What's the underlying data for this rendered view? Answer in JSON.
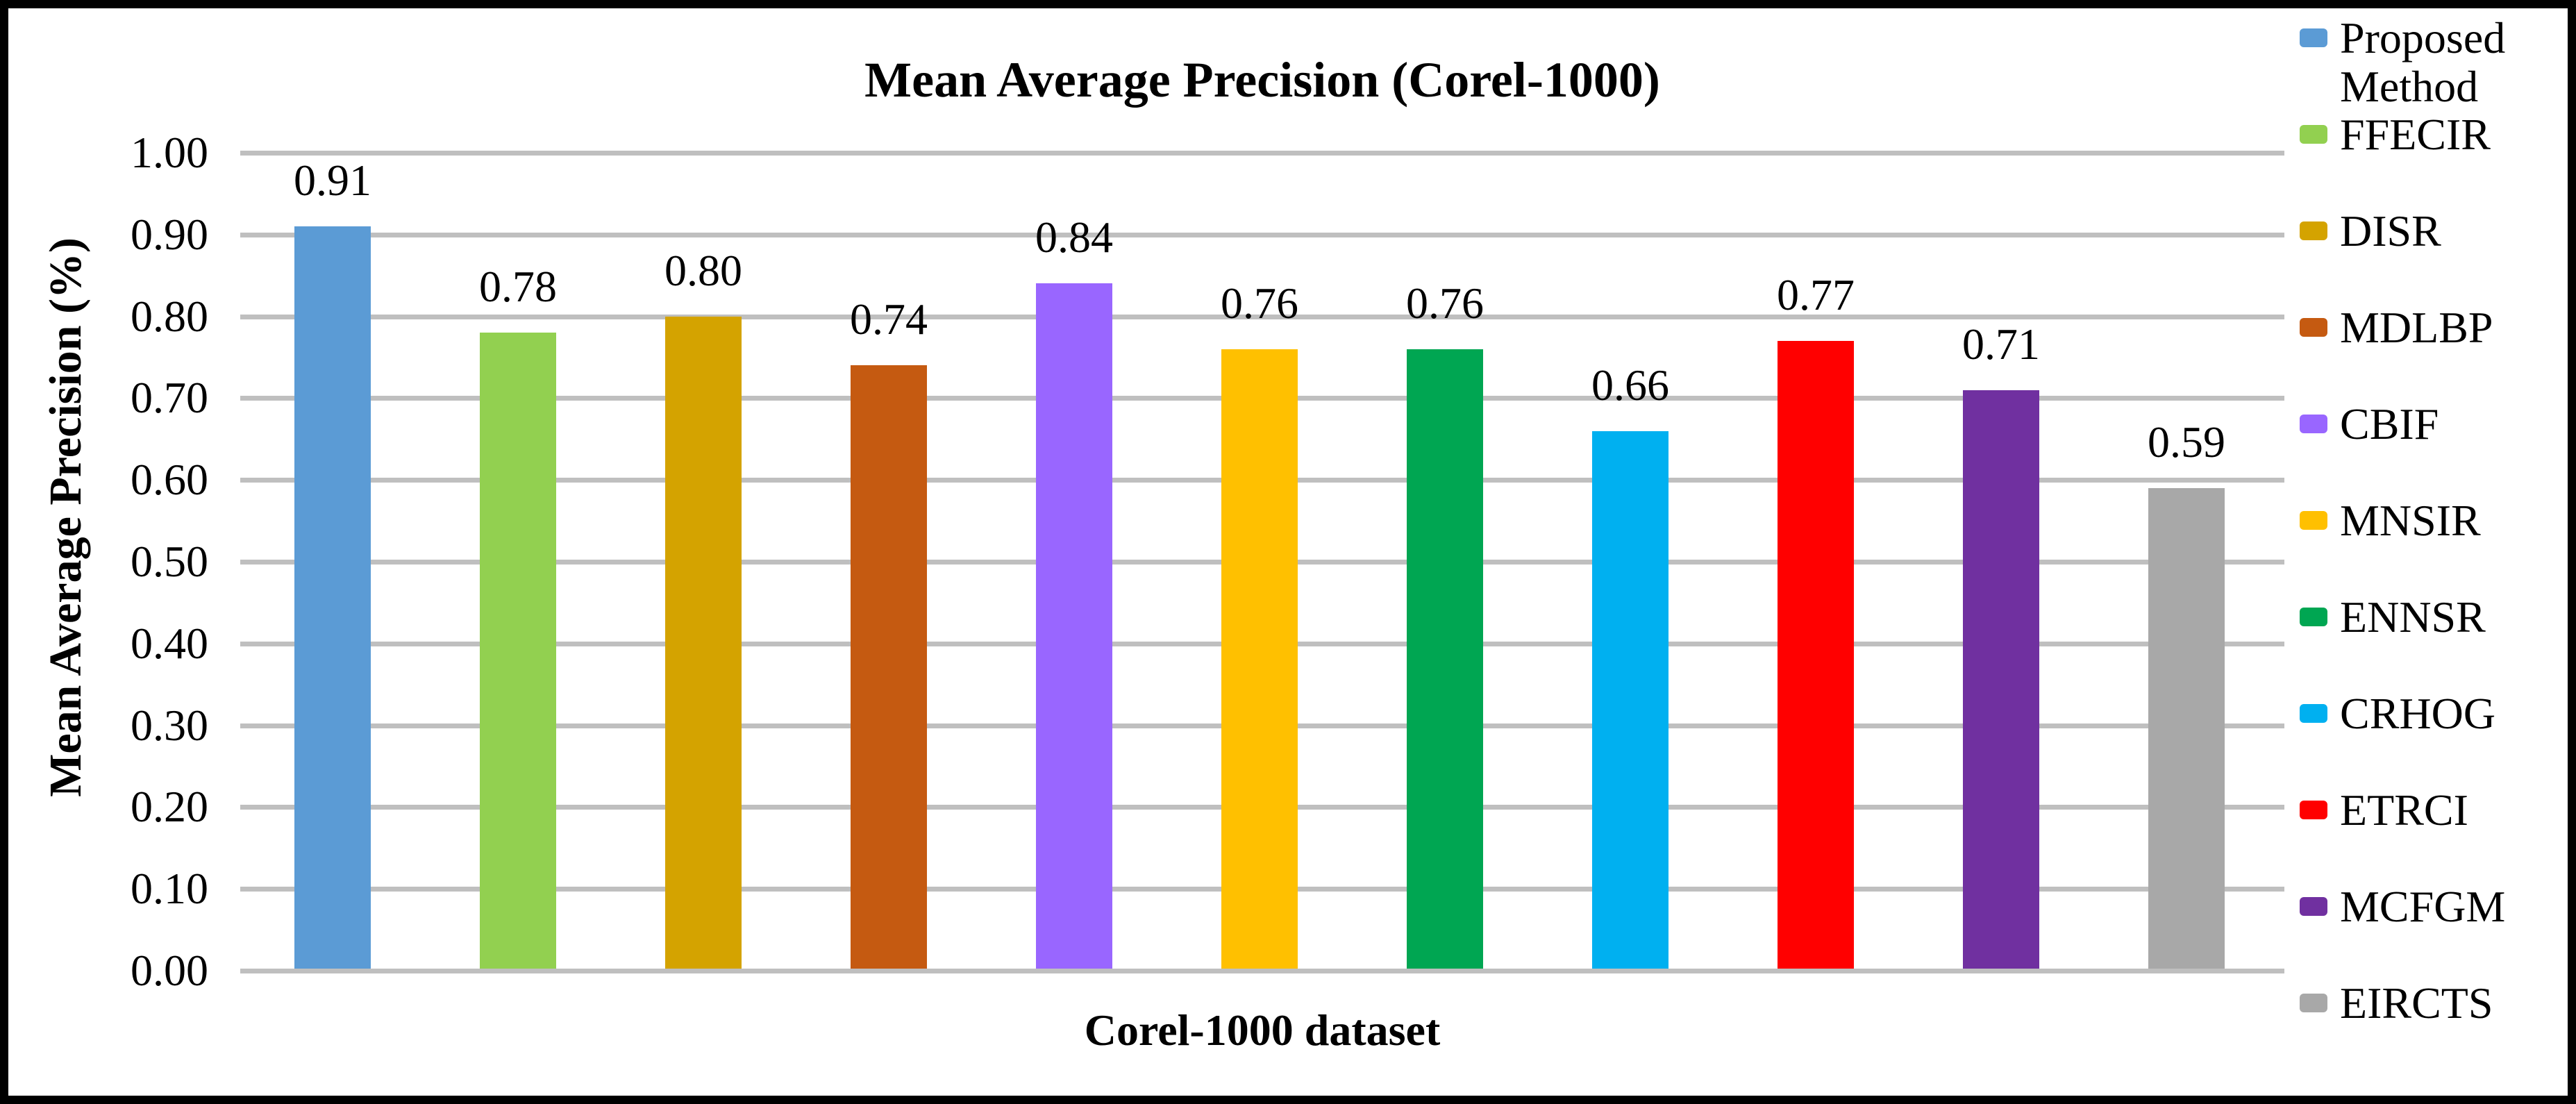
{
  "chart_data": {
    "type": "bar",
    "title": "Mean Average Precision (Corel-1000)",
    "xlabel": "Corel-1000 dataset",
    "ylabel": "Mean Average Precision (%)",
    "ylim": [
      0.0,
      1.0
    ],
    "ytick_step": 0.1,
    "yticks": [
      "0.00",
      "0.10",
      "0.20",
      "0.30",
      "0.40",
      "0.50",
      "0.60",
      "0.70",
      "0.80",
      "0.90",
      "1.00"
    ],
    "grid": true,
    "grid_color": "#BFBFBF",
    "legend_position": "right",
    "categories": [
      "Proposed Method",
      "FFECIR",
      "DISR",
      "MDLBP",
      "CBIF",
      "MNSIR",
      "ENNSR",
      "CRHOG",
      "ETRCI",
      "MCFGM",
      "EIRCTS"
    ],
    "series": [
      {
        "name": "Proposed Method",
        "value": 0.91,
        "label": "0.91",
        "color": "#5B9BD5"
      },
      {
        "name": "FFECIR",
        "value": 0.78,
        "label": "0.78",
        "color": "#92D050"
      },
      {
        "name": "DISR",
        "value": 0.8,
        "label": "0.80",
        "color": "#D4A300"
      },
      {
        "name": "MDLBP",
        "value": 0.74,
        "label": "0.74",
        "color": "#C55A11"
      },
      {
        "name": "CBIF",
        "value": 0.84,
        "label": "0.84",
        "color": "#9966FF"
      },
      {
        "name": "MNSIR",
        "value": 0.76,
        "label": "0.76",
        "color": "#FFC000"
      },
      {
        "name": "ENNSR",
        "value": 0.76,
        "label": "0.76",
        "color": "#00A652"
      },
      {
        "name": "CRHOG",
        "value": 0.66,
        "label": "0.66",
        "color": "#00B0F0"
      },
      {
        "name": "ETRCI",
        "value": 0.77,
        "label": "0.77",
        "color": "#FF0000"
      },
      {
        "name": "MCFGM",
        "value": 0.71,
        "label": "0.71",
        "color": "#7030A0"
      },
      {
        "name": "EIRCTS",
        "value": 0.59,
        "label": "0.59",
        "color": "#A8A8A8"
      }
    ]
  }
}
